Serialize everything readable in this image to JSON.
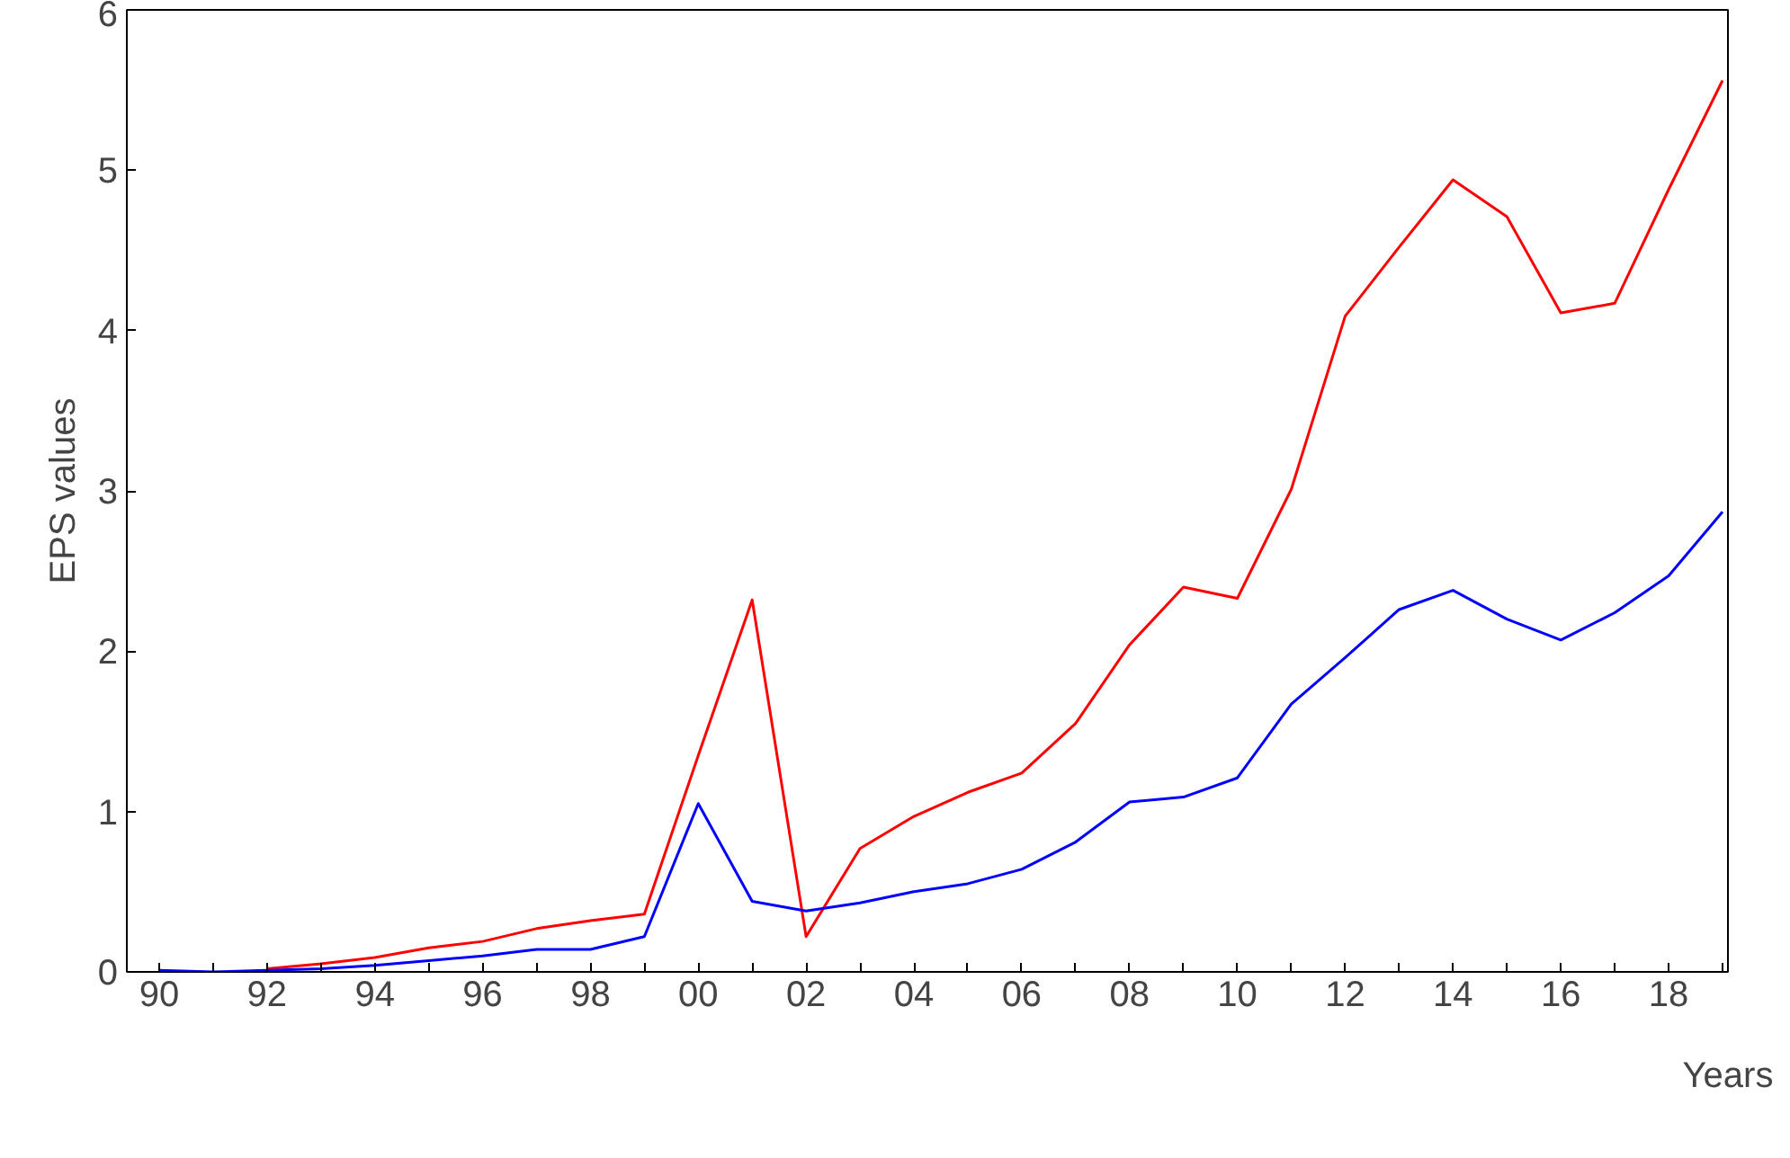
{
  "chart_data": {
    "type": "line",
    "xlabel": "Years",
    "ylabel": "EPS values",
    "x": [
      1990,
      1991,
      1992,
      1993,
      1994,
      1995,
      1996,
      1997,
      1998,
      1999,
      2000,
      2001,
      2002,
      2003,
      2004,
      2005,
      2006,
      2007,
      2008,
      2009,
      2010,
      2011,
      2012,
      2013,
      2014,
      2015,
      2016,
      2017,
      2018,
      2019
    ],
    "series": [
      {
        "color": "#0000ff",
        "values": [
          0.01,
          0,
          0.01,
          0.02,
          0.04,
          0.07,
          0.1,
          0.14,
          0.14,
          0.22,
          1.05,
          0.44,
          0.38,
          0.43,
          0.5,
          0.55,
          0.64,
          0.81,
          1.06,
          1.09,
          1.21,
          1.67,
          1.96,
          2.26,
          2.38,
          2.2,
          2.07,
          2.24,
          2.47,
          2.87
        ]
      },
      {
        "color": "#ff0000",
        "values": [
          null,
          null,
          0.02,
          0.05,
          0.09,
          0.15,
          0.19,
          0.27,
          0.32,
          0.36,
          1.35,
          2.32,
          0.22,
          0.77,
          0.97,
          1.12,
          1.24,
          1.55,
          2.04,
          2.4,
          2.33,
          3.01,
          4.09,
          4.52,
          4.94,
          4.71,
          4.11,
          4.17,
          4.88,
          5.56
        ]
      }
    ],
    "xlim": [
      1989.4,
      2019.1
    ],
    "xticks": [
      {
        "value": 1990,
        "label": "90"
      },
      {
        "value": 1991,
        "label": null
      },
      {
        "value": 1992,
        "label": "92"
      },
      {
        "value": 1993,
        "label": null
      },
      {
        "value": 1994,
        "label": "94"
      },
      {
        "value": 1995,
        "label": null
      },
      {
        "value": 1996,
        "label": "96"
      },
      {
        "value": 1997,
        "label": null
      },
      {
        "value": 1998,
        "label": "98"
      },
      {
        "value": 1999,
        "label": null
      },
      {
        "value": 2000,
        "label": "00"
      },
      {
        "value": 2001,
        "label": null
      },
      {
        "value": 2002,
        "label": "02"
      },
      {
        "value": 2003,
        "label": null
      },
      {
        "value": 2004,
        "label": "04"
      },
      {
        "value": 2005,
        "label": null
      },
      {
        "value": 2006,
        "label": "06"
      },
      {
        "value": 2007,
        "label": null
      },
      {
        "value": 2008,
        "label": "08"
      },
      {
        "value": 2009,
        "label": null
      },
      {
        "value": 2010,
        "label": "10"
      },
      {
        "value": 2011,
        "label": null
      },
      {
        "value": 2012,
        "label": "12"
      },
      {
        "value": 2013,
        "label": null
      },
      {
        "value": 2014,
        "label": "14"
      },
      {
        "value": 2015,
        "label": null
      },
      {
        "value": 2016,
        "label": "16"
      },
      {
        "value": 2017,
        "label": null
      },
      {
        "value": 2018,
        "label": "18"
      },
      {
        "value": 2019,
        "label": null
      }
    ],
    "ylim": [
      0,
      6
    ],
    "yticks": [
      0,
      1,
      2,
      3,
      4,
      5,
      6
    ],
    "grid": false,
    "line_style": "solid"
  }
}
